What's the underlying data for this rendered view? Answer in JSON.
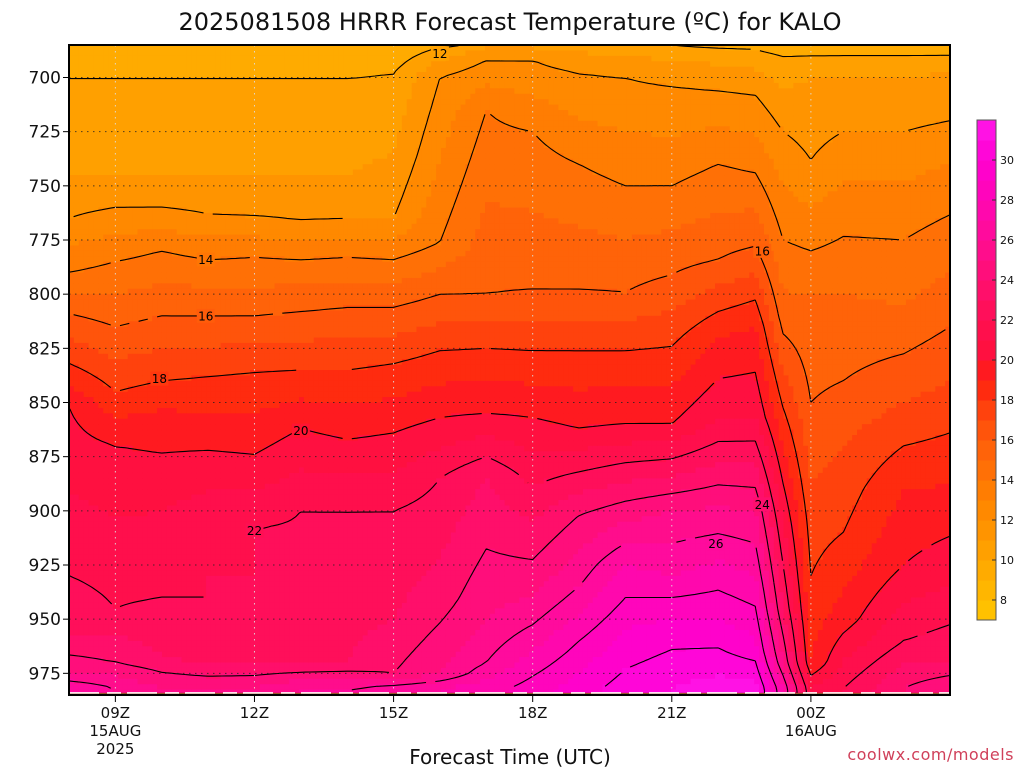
{
  "chart_data": {
    "type": "heatmap",
    "title": "2025081508 HRRR Forecast Temperature (ºC) for KALO",
    "xlabel": "Forecast Time (UTC)",
    "ylabel": "",
    "y_axis": {
      "unit": "hPa",
      "reversed": true,
      "ylim": [
        985,
        685
      ],
      "ticks": [
        700,
        725,
        750,
        775,
        800,
        825,
        850,
        875,
        900,
        925,
        950,
        975
      ]
    },
    "x_axis": {
      "xlim": [
        8,
        27
      ],
      "ticks": [
        {
          "x": 9,
          "lines": [
            "09Z",
            "15AUG",
            "2025"
          ]
        },
        {
          "x": 12,
          "lines": [
            "12Z"
          ]
        },
        {
          "x": 15,
          "lines": [
            "15Z"
          ]
        },
        {
          "x": 18,
          "lines": [
            "18Z"
          ]
        },
        {
          "x": 21,
          "lines": [
            "21Z"
          ]
        },
        {
          "x": 24,
          "lines": [
            "00Z",
            "16AUG"
          ]
        }
      ]
    },
    "grid": true,
    "colorbar": {
      "placement": "right",
      "min": 7,
      "max": 32,
      "labels": [
        8,
        10,
        12,
        14,
        16,
        18,
        20,
        22,
        24,
        26,
        28,
        30
      ]
    },
    "contour_labels": [
      {
        "value": "12",
        "x": 16.0,
        "p": 689
      },
      {
        "value": "14",
        "x": 10.95,
        "p": 784
      },
      {
        "value": "16",
        "x": 10.95,
        "p": 810
      },
      {
        "value": "16",
        "x": 22.95,
        "p": 780
      },
      {
        "value": "18",
        "x": 9.95,
        "p": 839
      },
      {
        "value": "20",
        "x": 13.0,
        "p": 863
      },
      {
        "value": "22",
        "x": 12.0,
        "p": 909
      },
      {
        "value": "24",
        "x": 22.95,
        "p": 897
      },
      {
        "value": "26",
        "x": 21.95,
        "p": 915
      }
    ],
    "surface_pressure_hPa": 984,
    "profile_columns": [
      {
        "x": 8,
        "isobar_temps": [
          [
            982,
            27
          ],
          [
            975,
            25
          ],
          [
            958,
            23
          ],
          [
            930,
            22
          ],
          [
            852,
            20
          ],
          [
            832,
            18
          ],
          [
            809,
            16
          ],
          [
            790,
            14
          ],
          [
            765,
            12
          ],
          [
            745,
            11
          ],
          [
            700,
            10
          ],
          [
            685,
            9
          ]
        ]
      },
      {
        "x": 9,
        "isobar_temps": [
          [
            982,
            26
          ],
          [
            970,
            24
          ],
          [
            945,
            22
          ],
          [
            920,
            21.5
          ],
          [
            870,
            20
          ],
          [
            845,
            18
          ],
          [
            815,
            16
          ],
          [
            785,
            14
          ],
          [
            760,
            12
          ],
          [
            745,
            11
          ],
          [
            700,
            10
          ],
          [
            685,
            9
          ]
        ]
      },
      {
        "x": 10,
        "isobar_temps": [
          [
            982,
            25
          ],
          [
            967,
            23
          ],
          [
            940,
            22
          ],
          [
            900,
            21
          ],
          [
            860,
            19.5
          ],
          [
            840,
            18
          ],
          [
            810,
            16
          ],
          [
            780,
            14
          ],
          [
            760,
            12
          ],
          [
            745,
            11
          ],
          [
            700,
            10
          ],
          [
            685,
            9
          ]
        ]
      },
      {
        "x": 11,
        "isobar_temps": [
          [
            982,
            25
          ],
          [
            965,
            22
          ],
          [
            930,
            22
          ],
          [
            900,
            21.5
          ],
          [
            872,
            20
          ],
          [
            838,
            18
          ],
          [
            810,
            16
          ],
          [
            784,
            14
          ],
          [
            763,
            12
          ],
          [
            745,
            11
          ],
          [
            700,
            10
          ],
          [
            685,
            9
          ]
        ]
      },
      {
        "x": 12,
        "isobar_temps": [
          [
            982,
            25
          ],
          [
            964,
            22
          ],
          [
            935,
            22
          ],
          [
            908,
            22
          ],
          [
            874,
            20
          ],
          [
            836,
            18
          ],
          [
            810,
            16
          ],
          [
            783,
            14
          ],
          [
            764,
            12
          ],
          [
            745,
            11
          ],
          [
            700,
            10
          ],
          [
            685,
            9
          ]
        ]
      },
      {
        "x": 13,
        "isobar_temps": [
          [
            982,
            26
          ],
          [
            967,
            22
          ],
          [
            935,
            22.5
          ],
          [
            900,
            22
          ],
          [
            862,
            20
          ],
          [
            835,
            18
          ],
          [
            808,
            16
          ],
          [
            784,
            14
          ],
          [
            766,
            12
          ],
          [
            745,
            11
          ],
          [
            700,
            10
          ],
          [
            685,
            9
          ]
        ]
      },
      {
        "x": 14,
        "isobar_temps": [
          [
            982,
            26
          ],
          [
            970,
            23
          ],
          [
            940,
            22.5
          ],
          [
            900,
            22
          ],
          [
            867,
            20
          ],
          [
            835,
            18
          ],
          [
            806,
            16
          ],
          [
            783,
            14
          ],
          [
            765,
            12
          ],
          [
            745,
            11
          ],
          [
            700,
            10
          ],
          [
            685,
            9
          ]
        ]
      },
      {
        "x": 15,
        "isobar_temps": [
          [
            982,
            26.5
          ],
          [
            975,
            24
          ],
          [
            950,
            23
          ],
          [
            900,
            22
          ],
          [
            864,
            20
          ],
          [
            832,
            18
          ],
          [
            806,
            16
          ],
          [
            784,
            14
          ],
          [
            765,
            12
          ],
          [
            735,
            11
          ],
          [
            698,
            10
          ],
          [
            685,
            9
          ]
        ]
      },
      {
        "x": 16,
        "isobar_temps": [
          [
            982,
            27
          ],
          [
            975,
            25
          ],
          [
            940,
            23.5
          ],
          [
            885,
            22
          ],
          [
            857,
            20
          ],
          [
            826,
            18
          ],
          [
            800,
            16
          ],
          [
            776,
            14
          ],
          [
            700,
            12
          ],
          [
            692,
            11
          ],
          [
            686,
            10
          ],
          [
            684,
            9
          ]
        ]
      },
      {
        "x": 17,
        "isobar_temps": [
          [
            982,
            27.5
          ],
          [
            970,
            26
          ],
          [
            950,
            25
          ],
          [
            885,
            23
          ],
          [
            855,
            20
          ],
          [
            825,
            18
          ],
          [
            800,
            16
          ],
          [
            715,
            14
          ],
          [
            692,
            12
          ],
          [
            686,
            11
          ],
          [
            684,
            10
          ],
          [
            683,
            9
          ]
        ]
      },
      {
        "x": 18,
        "isobar_temps": [
          [
            982,
            28.5
          ],
          [
            965,
            27
          ],
          [
            940,
            25
          ],
          [
            905,
            23
          ],
          [
            857,
            20
          ],
          [
            826,
            18
          ],
          [
            798,
            16
          ],
          [
            725,
            14
          ],
          [
            692,
            12
          ],
          [
            686,
            11
          ],
          [
            684,
            10
          ],
          [
            683,
            9
          ]
        ]
      },
      {
        "x": 19,
        "isobar_temps": [
          [
            982,
            29.5
          ],
          [
            960,
            28
          ],
          [
            935,
            26
          ],
          [
            902,
            24
          ],
          [
            862,
            20
          ],
          [
            826,
            18
          ],
          [
            798,
            16
          ],
          [
            740,
            14
          ],
          [
            698,
            12
          ],
          [
            688,
            11
          ],
          [
            685,
            10
          ],
          [
            683,
            9
          ]
        ]
      },
      {
        "x": 20,
        "isobar_temps": [
          [
            982,
            30.5
          ],
          [
            955,
            29
          ],
          [
            925,
            27
          ],
          [
            900,
            24.5
          ],
          [
            860,
            20
          ],
          [
            826,
            18
          ],
          [
            799,
            16
          ],
          [
            750,
            14
          ],
          [
            700,
            12
          ],
          [
            690,
            11
          ],
          [
            685,
            10
          ],
          [
            683,
            9
          ]
        ]
      },
      {
        "x": 21,
        "isobar_temps": [
          [
            982,
            31
          ],
          [
            955,
            29.5
          ],
          [
            930,
            27
          ],
          [
            900,
            25
          ],
          [
            860,
            20
          ],
          [
            824,
            18
          ],
          [
            791,
            16
          ],
          [
            750,
            14
          ],
          [
            704,
            12
          ],
          [
            692,
            11
          ],
          [
            685,
            10
          ],
          [
            683,
            9
          ]
        ]
      },
      {
        "x": 22,
        "isobar_temps": [
          [
            982,
            31.5
          ],
          [
            957,
            29.5
          ],
          [
            923,
            27
          ],
          [
            898,
            25
          ],
          [
            858,
            21
          ],
          [
            820,
            19
          ],
          [
            784,
            16
          ],
          [
            740,
            14
          ],
          [
            706,
            12
          ],
          [
            694,
            11
          ],
          [
            686,
            10
          ],
          [
            683,
            9
          ]
        ]
      },
      {
        "x": 22.8,
        "isobar_temps": [
          [
            982,
            31.5
          ],
          [
            965,
            29.5
          ],
          [
            930,
            27
          ],
          [
            900,
            25
          ],
          [
            857,
            21
          ],
          [
            815,
            19
          ],
          [
            778,
            16
          ],
          [
            744,
            14
          ],
          [
            708,
            12
          ],
          [
            696,
            11
          ],
          [
            687,
            10
          ],
          [
            683,
            9
          ]
        ]
      },
      {
        "x": 23.4,
        "isobar_temps": [
          [
            982,
            27
          ],
          [
            970,
            25
          ],
          [
            945,
            23
          ],
          [
            905,
            21
          ],
          [
            870,
            19
          ],
          [
            835,
            17
          ],
          [
            810,
            15.5
          ],
          [
            775,
            14
          ],
          [
            725,
            12
          ],
          [
            705,
            11
          ],
          [
            690,
            10
          ],
          [
            683,
            9
          ]
        ]
      },
      {
        "x": 24,
        "isobar_temps": [
          [
            982,
            21
          ],
          [
            970,
            19
          ],
          [
            930,
            18
          ],
          [
            905,
            17.5
          ],
          [
            850,
            16
          ],
          [
            800,
            15
          ],
          [
            770,
            13.5
          ],
          [
            738,
            12
          ],
          [
            700,
            11
          ],
          [
            690,
            10
          ],
          [
            685,
            9.5
          ],
          [
            683,
            9
          ]
        ]
      },
      {
        "x": 24.7,
        "isobar_temps": [
          [
            982,
            22
          ],
          [
            950,
            19.5
          ],
          [
            910,
            18
          ],
          [
            870,
            17
          ],
          [
            840,
            16
          ],
          [
            800,
            15
          ],
          [
            760,
            13.5
          ],
          [
            725,
            12
          ],
          [
            700,
            11
          ],
          [
            690,
            10
          ],
          [
            684,
            9.5
          ],
          [
            683,
            9
          ]
        ]
      },
      {
        "x": 26,
        "isobar_temps": [
          [
            982,
            24
          ],
          [
            960,
            22
          ],
          [
            925,
            20
          ],
          [
            890,
            19
          ],
          [
            850,
            17
          ],
          [
            805,
            15
          ],
          [
            760,
            13.5
          ],
          [
            725,
            12
          ],
          [
            700,
            11
          ],
          [
            690,
            10
          ],
          [
            684,
            9.5
          ],
          [
            683,
            9
          ]
        ]
      },
      {
        "x": 27,
        "isobar_temps": [
          [
            982,
            25
          ],
          [
            970,
            23
          ],
          [
            935,
            21
          ],
          [
            900,
            19.5
          ],
          [
            840,
            17
          ],
          [
            790,
            15
          ],
          [
            750,
            13.5
          ],
          [
            720,
            12
          ],
          [
            697,
            11
          ],
          [
            690,
            10
          ],
          [
            684,
            9.5
          ],
          [
            683,
            9
          ]
        ]
      }
    ]
  },
  "credit": "coolwx.com/models"
}
